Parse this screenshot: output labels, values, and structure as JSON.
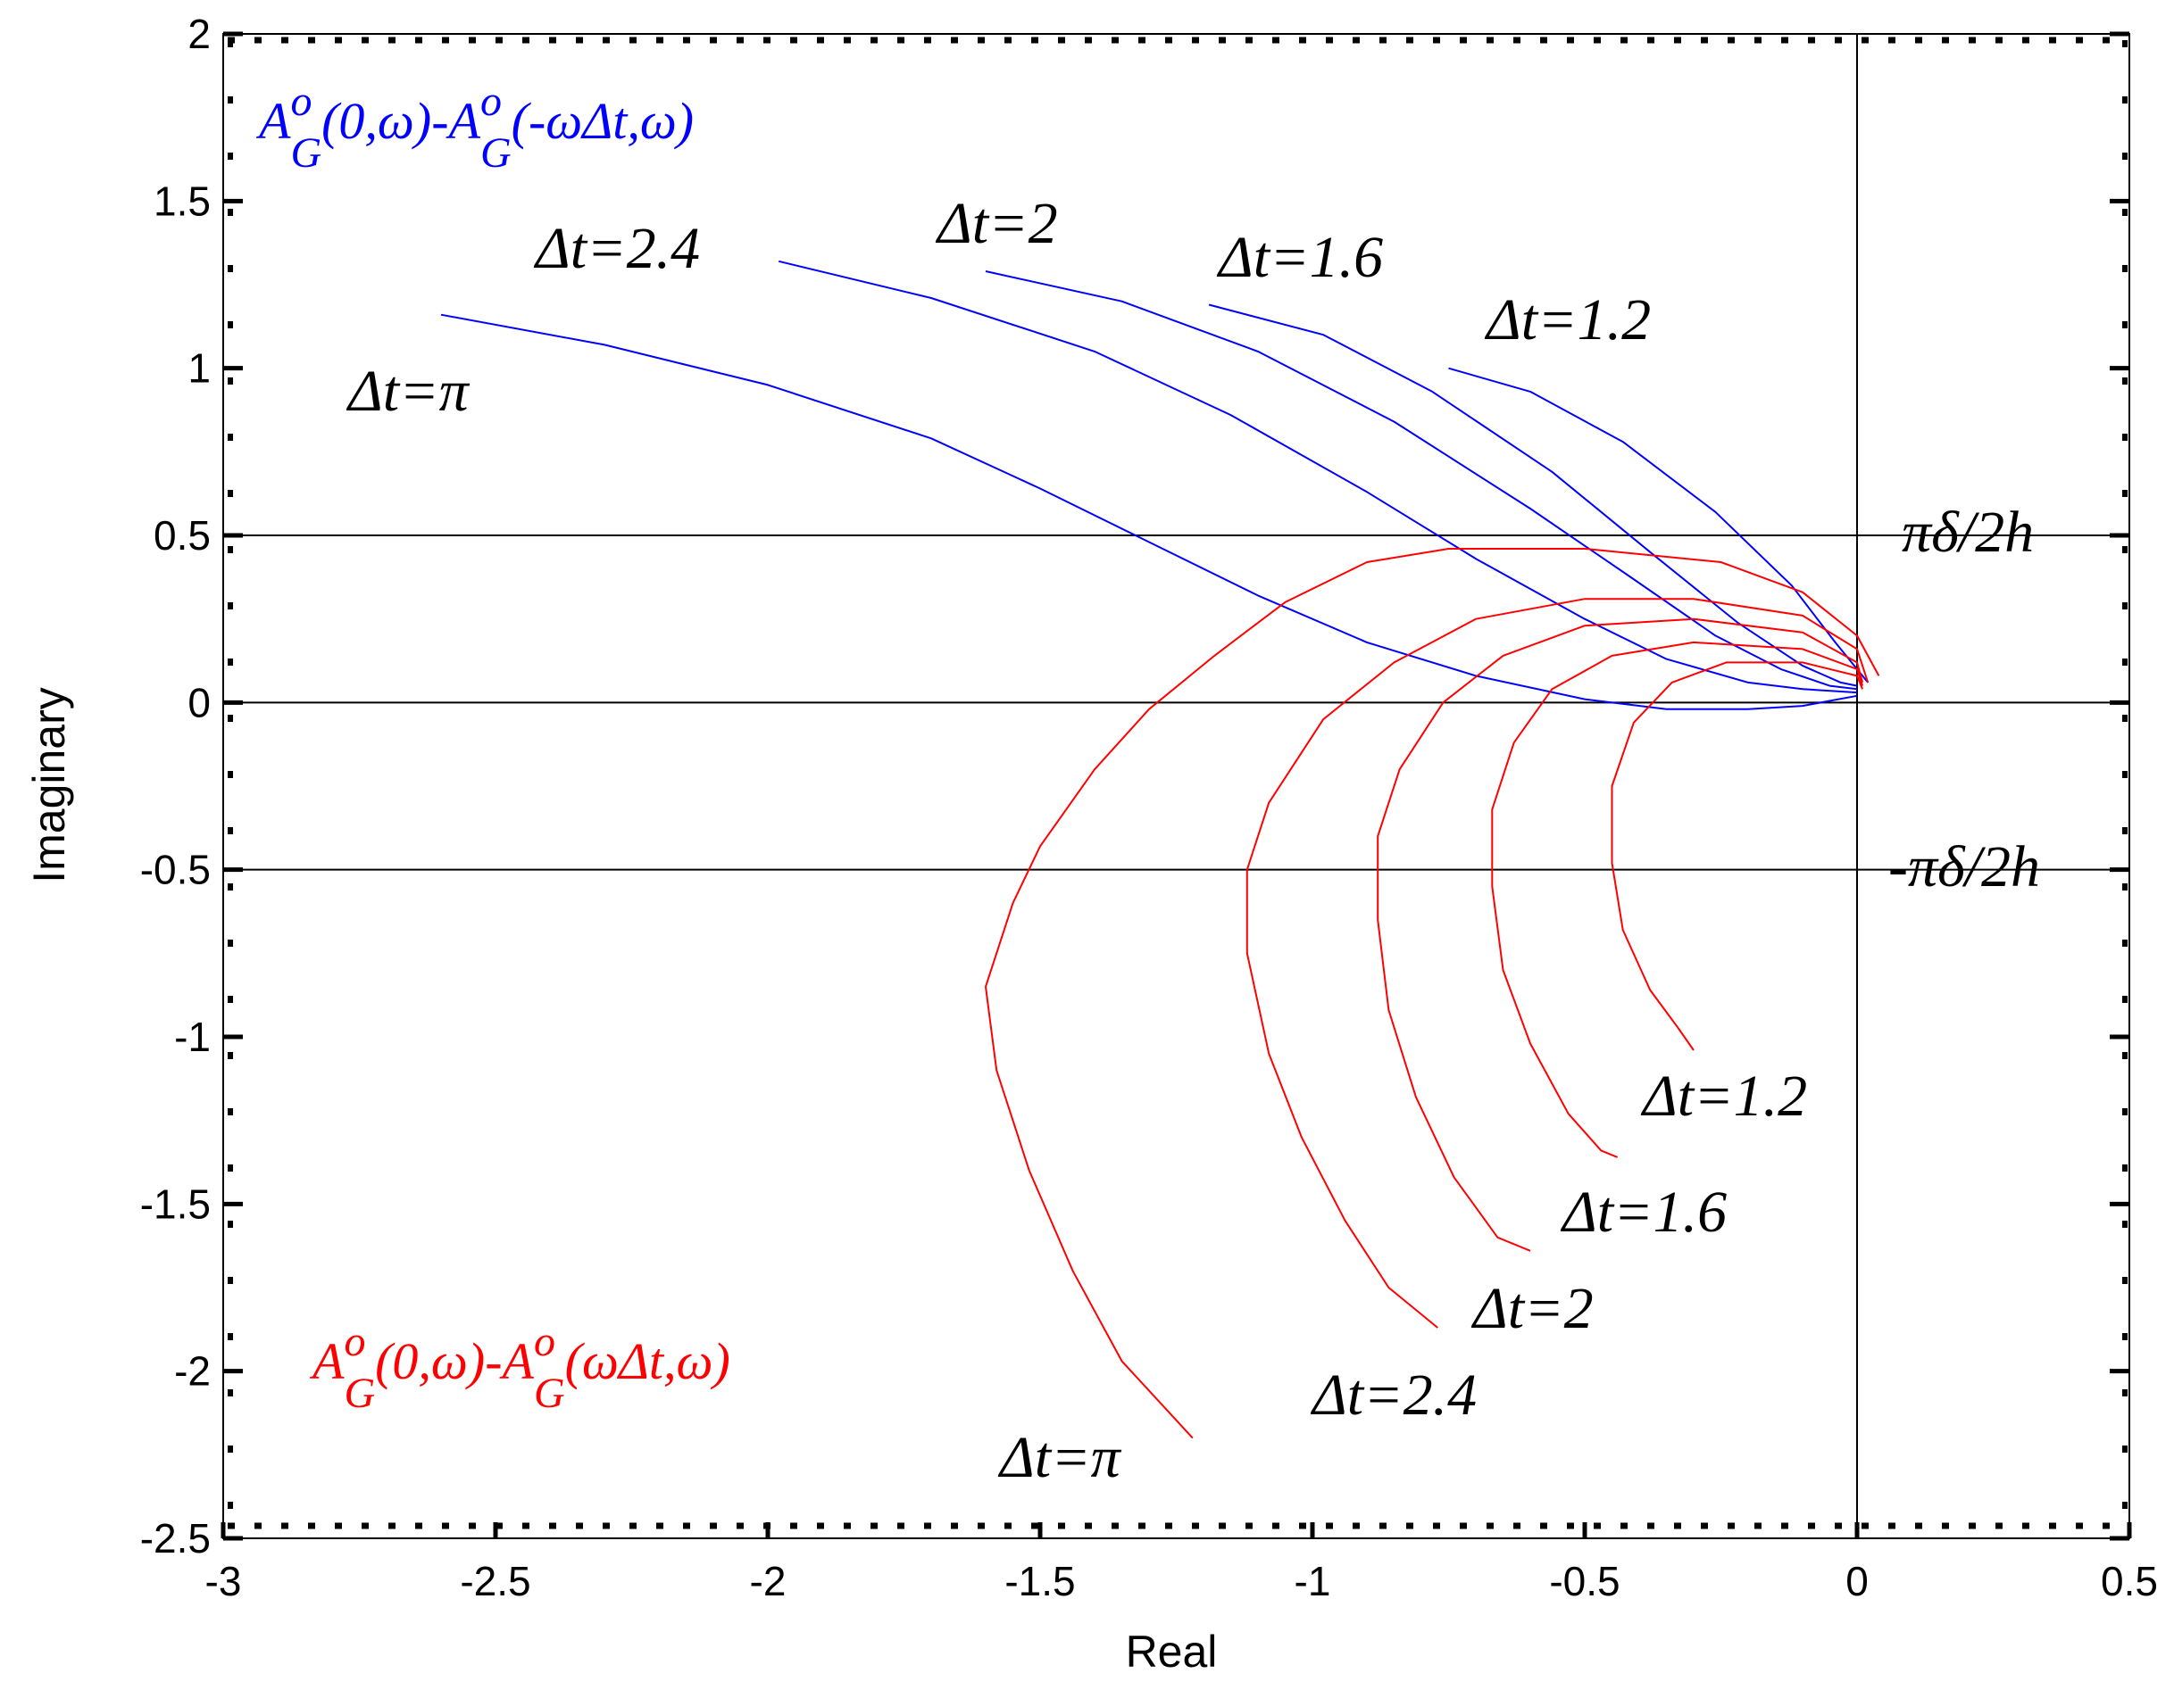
{
  "chart_data": {
    "type": "line",
    "xlabel": "Real",
    "ylabel": "Imaginary",
    "xlim": [
      -3,
      0.5
    ],
    "ylim": [
      -2.5,
      2
    ],
    "xticks": [
      -3,
      -2.5,
      -2,
      -1.5,
      -1,
      -0.5,
      0,
      0.5
    ],
    "xtick_labels": [
      "-3",
      "-2.5",
      "-2",
      "-1.5",
      "-1",
      "-0.5",
      "0",
      "0.5"
    ],
    "yticks": [
      2,
      1.5,
      1,
      0.5,
      0,
      -0.5,
      -1,
      -1.5,
      -2,
      -2.5
    ],
    "ytick_labels": [
      "2",
      "1.5",
      "1",
      "0.5",
      "0",
      "-0.5",
      "-1",
      "-1.5",
      "-2",
      "-2.5"
    ],
    "reference_lines": [
      {
        "orientation": "horizontal",
        "value": 0.5,
        "label": "πδ/2h"
      },
      {
        "orientation": "horizontal",
        "value": 0,
        "label": ""
      },
      {
        "orientation": "horizontal",
        "value": -0.5,
        "label": "-πδ/2h"
      },
      {
        "orientation": "vertical",
        "value": 0,
        "label": ""
      }
    ],
    "colors": {
      "blue": "#0000ff",
      "red": "#ff0000",
      "grid": "#000000"
    },
    "series_groups": [
      {
        "color": "#0000ff",
        "legend": {
          "A": "A",
          "sup": "o",
          "sub": "G",
          "left": "(0,ω)-",
          "right": "(-ωΔt,ω)"
        },
        "series": [
          {
            "name": "Δt=π",
            "label": "Δt=π",
            "points": [
              [
                -2.6,
                1.16
              ],
              [
                -2.3,
                1.07
              ],
              [
                -2.0,
                0.95
              ],
              [
                -1.7,
                0.79
              ],
              [
                -1.5,
                0.64
              ],
              [
                -1.3,
                0.48
              ],
              [
                -1.1,
                0.32
              ],
              [
                -0.9,
                0.18
              ],
              [
                -0.7,
                0.08
              ],
              [
                -0.5,
                0.01
              ],
              [
                -0.35,
                -0.02
              ],
              [
                -0.2,
                -0.02
              ],
              [
                -0.1,
                -0.01
              ],
              [
                0,
                0.02
              ]
            ]
          },
          {
            "name": "Δt=2.4",
            "label": "Δt=2.4",
            "points": [
              [
                -1.98,
                1.32
              ],
              [
                -1.7,
                1.21
              ],
              [
                -1.4,
                1.05
              ],
              [
                -1.15,
                0.86
              ],
              [
                -0.9,
                0.63
              ],
              [
                -0.7,
                0.43
              ],
              [
                -0.5,
                0.25
              ],
              [
                -0.35,
                0.13
              ],
              [
                -0.2,
                0.06
              ],
              [
                -0.1,
                0.04
              ],
              [
                0,
                0.03
              ]
            ]
          },
          {
            "name": "Δt=2",
            "label": "Δt=2",
            "points": [
              [
                -1.6,
                1.29
              ],
              [
                -1.35,
                1.2
              ],
              [
                -1.1,
                1.05
              ],
              [
                -0.85,
                0.84
              ],
              [
                -0.6,
                0.58
              ],
              [
                -0.42,
                0.38
              ],
              [
                -0.26,
                0.2
              ],
              [
                -0.14,
                0.1
              ],
              [
                -0.05,
                0.05
              ],
              [
                0,
                0.04
              ]
            ]
          },
          {
            "name": "Δt=1.6",
            "label": "Δt=1.6",
            "points": [
              [
                -1.19,
                1.19
              ],
              [
                -0.98,
                1.1
              ],
              [
                -0.78,
                0.93
              ],
              [
                -0.56,
                0.69
              ],
              [
                -0.38,
                0.45
              ],
              [
                -0.22,
                0.24
              ],
              [
                -0.1,
                0.11
              ],
              [
                -0.03,
                0.06
              ],
              [
                0,
                0.05
              ]
            ]
          },
          {
            "name": "Δt=1.2",
            "label": "Δt=1.2",
            "points": [
              [
                -0.75,
                1.0
              ],
              [
                -0.6,
                0.93
              ],
              [
                -0.43,
                0.78
              ],
              [
                -0.26,
                0.57
              ],
              [
                -0.12,
                0.35
              ],
              [
                -0.04,
                0.18
              ],
              [
                0,
                0.1
              ],
              [
                0.02,
                0.06
              ]
            ]
          }
        ]
      },
      {
        "color": "#ff0000",
        "legend": {
          "A": "A",
          "sup": "o",
          "sub": "G",
          "left": "(0,ω)-",
          "right": "(ωΔt,ω)"
        },
        "series": [
          {
            "name": "Δt=π",
            "label": "Δt=π",
            "points": [
              [
                0.04,
                0.08
              ],
              [
                0.0,
                0.2
              ],
              [
                -0.1,
                0.33
              ],
              [
                -0.25,
                0.42
              ],
              [
                -0.5,
                0.46
              ],
              [
                -0.75,
                0.46
              ],
              [
                -0.9,
                0.42
              ],
              [
                -1.05,
                0.3
              ],
              [
                -1.18,
                0.14
              ],
              [
                -1.3,
                -0.02
              ],
              [
                -1.4,
                -0.2
              ],
              [
                -1.5,
                -0.43
              ],
              [
                -1.55,
                -0.6
              ],
              [
                -1.6,
                -0.85
              ],
              [
                -1.58,
                -1.1
              ],
              [
                -1.52,
                -1.4
              ],
              [
                -1.44,
                -1.7
              ],
              [
                -1.35,
                -1.97
              ],
              [
                -1.22,
                -2.2
              ]
            ]
          },
          {
            "name": "Δt=2.4",
            "label": "Δt=2.4",
            "points": [
              [
                0.02,
                0.06
              ],
              [
                0.0,
                0.16
              ],
              [
                -0.1,
                0.26
              ],
              [
                -0.3,
                0.31
              ],
              [
                -0.5,
                0.31
              ],
              [
                -0.7,
                0.25
              ],
              [
                -0.85,
                0.12
              ],
              [
                -0.98,
                -0.05
              ],
              [
                -1.08,
                -0.3
              ],
              [
                -1.12,
                -0.5
              ],
              [
                -1.12,
                -0.75
              ],
              [
                -1.08,
                -1.05
              ],
              [
                -1.02,
                -1.3
              ],
              [
                -0.94,
                -1.55
              ],
              [
                -0.86,
                -1.75
              ],
              [
                -0.77,
                -1.87
              ]
            ]
          },
          {
            "name": "Δt=2",
            "label": "Δt=2",
            "points": [
              [
                0.01,
                0.06
              ],
              [
                0.0,
                0.12
              ],
              [
                -0.1,
                0.21
              ],
              [
                -0.3,
                0.25
              ],
              [
                -0.5,
                0.23
              ],
              [
                -0.65,
                0.14
              ],
              [
                -0.76,
                0.0
              ],
              [
                -0.84,
                -0.2
              ],
              [
                -0.88,
                -0.4
              ],
              [
                -0.88,
                -0.65
              ],
              [
                -0.86,
                -0.92
              ],
              [
                -0.81,
                -1.18
              ],
              [
                -0.74,
                -1.42
              ],
              [
                -0.66,
                -1.6
              ],
              [
                -0.6,
                -1.64
              ]
            ]
          },
          {
            "name": "Δt=1.6",
            "label": "Δt=1.6",
            "points": [
              [
                0.01,
                0.05
              ],
              [
                0.0,
                0.1
              ],
              [
                -0.1,
                0.16
              ],
              [
                -0.3,
                0.18
              ],
              [
                -0.45,
                0.14
              ],
              [
                -0.56,
                0.04
              ],
              [
                -0.63,
                -0.12
              ],
              [
                -0.67,
                -0.32
              ],
              [
                -0.67,
                -0.55
              ],
              [
                -0.65,
                -0.8
              ],
              [
                -0.6,
                -1.02
              ],
              [
                -0.53,
                -1.23
              ],
              [
                -0.47,
                -1.34
              ],
              [
                -0.44,
                -1.36
              ]
            ]
          },
          {
            "name": "Δt=1.2",
            "label": "Δt=1.2",
            "points": [
              [
                0.01,
                0.04
              ],
              [
                0.0,
                0.08
              ],
              [
                -0.1,
                0.12
              ],
              [
                -0.24,
                0.12
              ],
              [
                -0.34,
                0.06
              ],
              [
                -0.41,
                -0.06
              ],
              [
                -0.45,
                -0.25
              ],
              [
                -0.45,
                -0.48
              ],
              [
                -0.43,
                -0.68
              ],
              [
                -0.38,
                -0.86
              ],
              [
                -0.33,
                -0.97
              ],
              [
                -0.3,
                -1.04
              ]
            ]
          }
        ]
      }
    ]
  }
}
